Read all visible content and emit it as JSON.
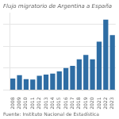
{
  "chart_data": {
    "type": "bar",
    "title": "Flujo migratorio de Argentina a España",
    "source": "Fuente: Instituto Nacional de Estadística",
    "categories": [
      "2008",
      "2009",
      "2010",
      "2011",
      "2012",
      "2013",
      "2014",
      "2015",
      "2016",
      "2017",
      "2018",
      "2019",
      "2020",
      "2021",
      "2022",
      "2023"
    ],
    "values": [
      5200,
      6800,
      5000,
      4800,
      6500,
      7000,
      7500,
      8500,
      10000,
      11000,
      14000,
      16000,
      14000,
      22000,
      32000,
      25000
    ],
    "color": "#2e6da4",
    "ylim": [
      0,
      35000
    ],
    "yticks": [
      0,
      10000,
      20000,
      30000
    ],
    "grid": true,
    "tick_labels": "x"
  }
}
